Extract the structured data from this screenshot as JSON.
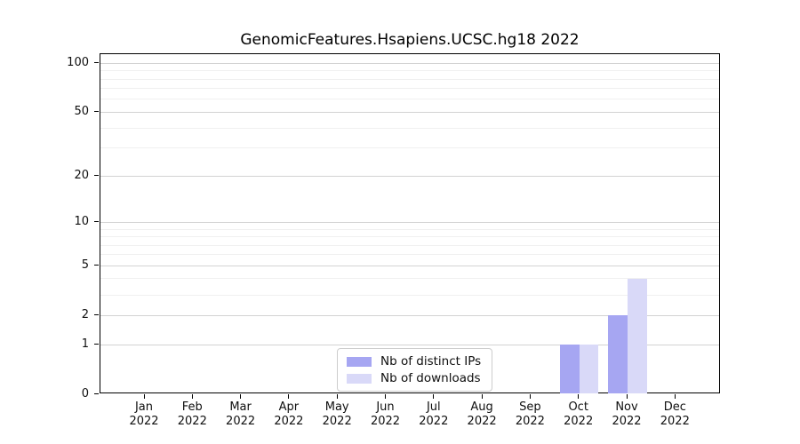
{
  "title": "GenomicFeatures.Hsapiens.UCSC.hg18 2022",
  "chart_data": {
    "type": "bar",
    "title": "GenomicFeatures.Hsapiens.UCSC.hg18 2022",
    "categories": [
      "Jan 2022",
      "Feb 2022",
      "Mar 2022",
      "Apr 2022",
      "May 2022",
      "Jun 2022",
      "Jul 2022",
      "Aug 2022",
      "Sep 2022",
      "Oct 2022",
      "Nov 2022",
      "Dec 2022"
    ],
    "series": [
      {
        "name": "Nb of distinct IPs",
        "color": "#a6a6f2",
        "values": [
          0,
          0,
          0,
          0,
          0,
          0,
          0,
          0,
          0,
          1,
          2,
          0
        ]
      },
      {
        "name": "Nb of downloads",
        "color": "#d9d9f8",
        "values": [
          0,
          0,
          0,
          0,
          0,
          0,
          0,
          0,
          0,
          1,
          4,
          0
        ]
      }
    ],
    "xlabel": "",
    "ylabel": "",
    "y_scale": "log1p",
    "ylim": [
      0,
      113.6
    ],
    "y_ticks_major": [
      0,
      1,
      2,
      5,
      10,
      20,
      50,
      100
    ],
    "y_ticks_minor": [
      3,
      4,
      6,
      7,
      8,
      9,
      30,
      40,
      60,
      70,
      80,
      90
    ],
    "grid": true,
    "legend_position": "inside-bottom-center-left",
    "colors": {
      "grid_major": "#d3d3d3",
      "grid_minor": "#f0f0f0",
      "axis": "#000000",
      "background": "#ffffff"
    }
  }
}
